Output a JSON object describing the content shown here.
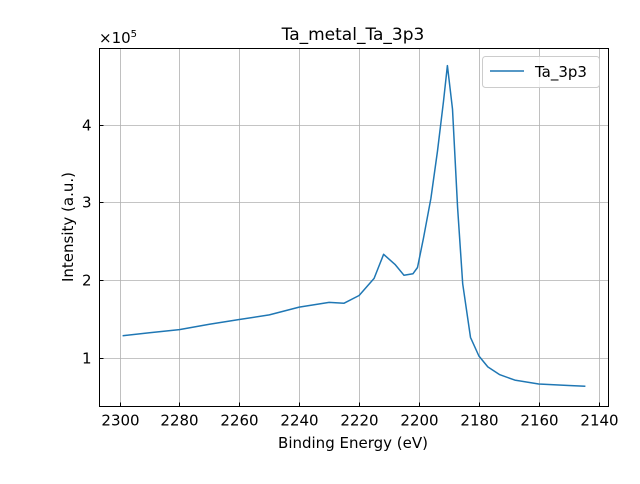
{
  "chart_data": {
    "type": "line",
    "title": "Ta_metal_Ta_3p3",
    "xlabel": "Binding Energy (eV)",
    "ylabel": "Intensity (a.u.)",
    "y_offset_text": "×10",
    "y_offset_exp": "5",
    "xlim": [
      2306.7,
      2136.7
    ],
    "ylim": [
      0.37,
      4.98
    ],
    "x_reversed": true,
    "grid": true,
    "legend_position": "top-right",
    "x_ticks": [
      2300,
      2280,
      2260,
      2240,
      2220,
      2200,
      2180,
      2160,
      2140
    ],
    "x_tick_labels": [
      "2300",
      "2280",
      "2260",
      "2240",
      "2220",
      "2200",
      "2180",
      "2160",
      "2140"
    ],
    "y_ticks": [
      1,
      2,
      3,
      4
    ],
    "y_tick_labels": [
      "1",
      "2",
      "3",
      "4"
    ],
    "series": [
      {
        "name": "Ta_3p3",
        "color": "#1f77b4",
        "x": [
          2299,
          2290,
          2280,
          2270,
          2260,
          2250,
          2240,
          2230,
          2225,
          2220,
          2215,
          2211.8,
          2208,
          2205,
          2202,
          2200.5,
          2198.5,
          2196,
          2193.8,
          2191.8,
          2190.5,
          2188.8,
          2187.1,
          2185.4,
          2182.8,
          2180,
          2177,
          2173,
          2168,
          2160,
          2150,
          2144.4
        ],
        "values": [
          1.28,
          1.32,
          1.36,
          1.43,
          1.49,
          1.55,
          1.65,
          1.71,
          1.7,
          1.8,
          2.02,
          2.33,
          2.2,
          2.06,
          2.08,
          2.16,
          2.54,
          3.05,
          3.66,
          4.3,
          4.76,
          4.2,
          2.93,
          1.95,
          1.26,
          1.02,
          0.88,
          0.78,
          0.71,
          0.66,
          0.64,
          0.63
        ]
      }
    ]
  }
}
